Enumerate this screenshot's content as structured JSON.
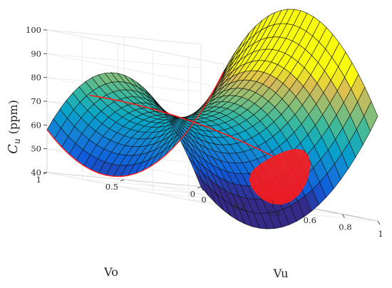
{
  "chart_data": {
    "type": "surface3d",
    "title": "",
    "xlabel": "Vu",
    "ylabel": "Vo",
    "zlabel": {
      "symbol": "C",
      "subscript": "u",
      "unit": "(ppm)"
    },
    "xlim": [
      0,
      1
    ],
    "ylim": [
      0,
      1
    ],
    "zlim": [
      40,
      100
    ],
    "x_ticks": [
      "0",
      "0.2",
      "0.4",
      "0.6",
      "0.8",
      "1"
    ],
    "y_ticks": [
      "0",
      "0.5",
      "1"
    ],
    "z_ticks": [
      "40",
      "50",
      "60",
      "70",
      "80",
      "90",
      "100"
    ],
    "grid": true,
    "colormap": "parula",
    "surface_corners": [
      {
        "x": 0,
        "y": 0,
        "z": 40
      },
      {
        "x": 1,
        "y": 0,
        "z": 84
      },
      {
        "x": 0,
        "y": 1,
        "z": 58
      },
      {
        "x": 1,
        "y": 1,
        "z": 97
      }
    ],
    "surface_minimum": {
      "x": 0.5,
      "y": 0.25,
      "z": 40
    },
    "highlight_color": "#ff1a1a",
    "mesh_resolution": 24
  }
}
